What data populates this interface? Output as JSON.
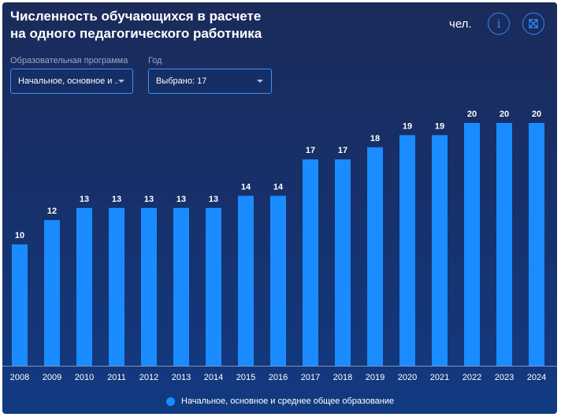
{
  "header": {
    "title_line1": "Численность обучающихся в расчете",
    "title_line2": "на одного педагогического работника",
    "unit": "чел.",
    "info_icon": "info-icon",
    "expand_icon": "expand-icon"
  },
  "filters": {
    "program": {
      "label": "Образовательная программа",
      "value": "Начальное, основное и ..."
    },
    "year": {
      "label": "Год",
      "value": "Выбрано: 17"
    }
  },
  "colors": {
    "bar": "#1a8cff",
    "accent": "#2f86ff"
  },
  "chart_data": {
    "type": "bar",
    "categories": [
      "2008",
      "2009",
      "2010",
      "2011",
      "2012",
      "2013",
      "2014",
      "2015",
      "2016",
      "2017",
      "2018",
      "2019",
      "2020",
      "2021",
      "2022",
      "2023",
      "2024"
    ],
    "series": [
      {
        "name": "Начальное, основное и среднее общее образование",
        "values": [
          10,
          12,
          13,
          13,
          13,
          13,
          13,
          14,
          14,
          17,
          17,
          18,
          19,
          19,
          20,
          20,
          20
        ]
      }
    ],
    "data_labels": true,
    "ylim": [
      0,
      20
    ],
    "grid": false,
    "legend": "bottom"
  }
}
